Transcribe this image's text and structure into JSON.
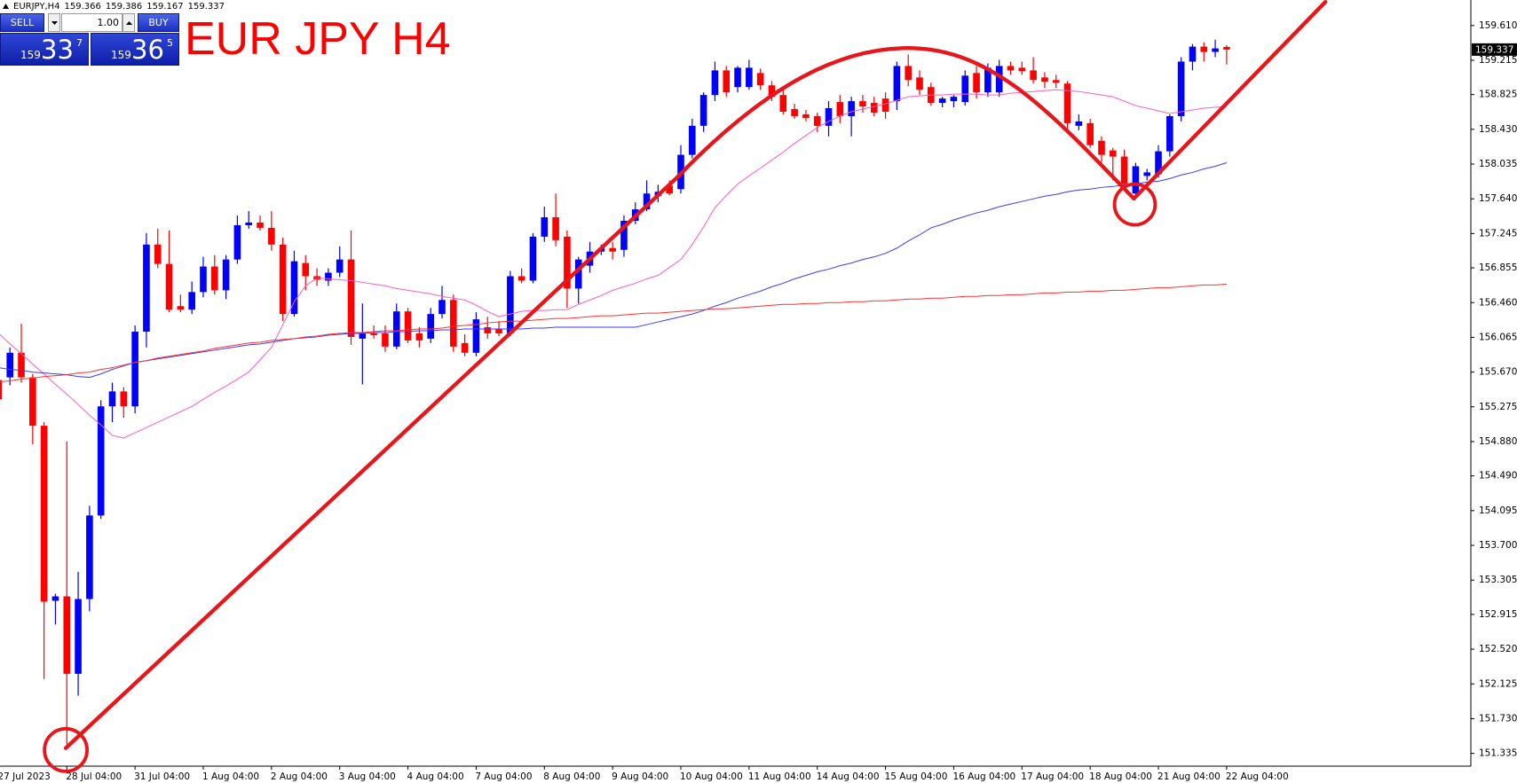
{
  "symbol": "EURJPY,H4",
  "trade_panel": {
    "sell": "SELL",
    "lot": "1.00",
    "buy": "BUY",
    "bid": {
      "big": "159",
      "pips": "33",
      "point": "7"
    },
    "ask": {
      "big": "159",
      "pips": "36",
      "point": "5"
    }
  },
  "chart_data": {
    "type": "candlestick",
    "title": "EUR JPY H4",
    "categories": [
      "27 Jul 2023",
      null,
      null,
      null,
      null,
      null,
      "28 Jul 04:00",
      null,
      null,
      null,
      null,
      null,
      "31 Jul 04:00",
      null,
      null,
      null,
      null,
      null,
      "1 Aug 04:00",
      null,
      null,
      null,
      null,
      null,
      "2 Aug 04:00",
      null,
      null,
      null,
      null,
      null,
      "3 Aug 04:00",
      null,
      null,
      null,
      null,
      null,
      "4 Aug 04:00",
      null,
      null,
      null,
      null,
      null,
      "7 Aug 04:00",
      null,
      null,
      null,
      null,
      null,
      "8 Aug 04:00",
      null,
      null,
      null,
      null,
      null,
      "9 Aug 04:00",
      null,
      null,
      null,
      null,
      null,
      "10 Aug 04:00",
      null,
      null,
      null,
      null,
      null,
      "11 Aug 04:00",
      null,
      null,
      null,
      null,
      null,
      "14 Aug 04:00",
      null,
      null,
      null,
      null,
      null,
      "15 Aug 04:00",
      null,
      null,
      null,
      null,
      null,
      "16 Aug 04:00",
      null,
      null,
      null,
      null,
      null,
      "17 Aug 04:00",
      null,
      null,
      null,
      null,
      null,
      "18 Aug 04:00",
      null,
      null,
      null,
      null,
      null,
      "21 Aug 04:00",
      null,
      null,
      null,
      null,
      null,
      "22 Aug 04:00"
    ],
    "open": [
      155.58,
      155.61,
      155.89,
      155.61,
      155.06,
      153.07,
      153.12,
      152.24,
      153.09,
      154.04,
      155.28,
      155.45,
      155.28,
      156.13,
      157.12,
      156.9,
      156.42,
      156.38,
      156.58,
      156.87,
      156.6,
      156.95,
      157.34,
      157.37,
      157.31,
      157.12,
      156.33,
      156.91,
      156.76,
      156.71,
      156.8,
      156.95,
      156.05,
      156.11,
      156.11,
      155.96,
      156.36,
      156.11,
      156.05,
      156.33,
      156.49,
      156.0,
      155.89,
      156.18,
      156.16,
      156.11,
      156.76,
      156.71,
      157.21,
      157.43,
      157.21,
      156.62,
      156.88,
      157.04,
      157.08,
      157.06,
      157.39,
      157.52,
      157.67,
      157.79,
      157.75,
      158.14,
      158.47,
      158.82,
      159.1,
      158.91,
      158.91,
      159.07,
      158.93,
      158.82,
      158.66,
      158.6,
      158.58,
      158.47,
      158.74,
      158.58,
      158.75,
      158.73,
      158.78,
      158.75,
      159.15,
      159.02,
      158.91,
      158.73,
      158.75,
      158.74,
      159.07,
      158.85,
      158.85,
      159.15,
      159.13,
      159.1,
      159.02,
      158.99,
      158.95,
      158.47,
      158.5,
      158.3,
      158.19,
      158.12,
      157.7,
      157.9,
      157.92,
      158.18,
      158.58,
      159.2,
      159.37,
      159.31,
      159.366
    ],
    "high": [
      155.64,
      155.95,
      156.22,
      155.65,
      155.1,
      153.15,
      154.88,
      153.4,
      154.15,
      155.35,
      155.55,
      155.5,
      156.2,
      157.25,
      157.3,
      157.28,
      156.55,
      156.7,
      156.98,
      157.0,
      157.0,
      157.45,
      157.5,
      157.45,
      157.5,
      157.2,
      157.05,
      157.0,
      156.85,
      156.85,
      157.1,
      157.28,
      156.45,
      156.2,
      156.2,
      156.45,
      156.4,
      156.18,
      156.4,
      156.65,
      156.55,
      156.1,
      156.35,
      156.3,
      156.25,
      156.82,
      156.85,
      157.25,
      157.55,
      157.7,
      157.28,
      156.98,
      157.15,
      157.12,
      157.15,
      157.45,
      157.6,
      157.85,
      157.8,
      157.85,
      158.25,
      158.55,
      158.85,
      159.2,
      159.15,
      159.15,
      159.22,
      159.12,
      158.98,
      158.88,
      158.72,
      158.65,
      158.62,
      158.75,
      158.82,
      158.8,
      158.82,
      158.8,
      158.85,
      159.2,
      159.28,
      159.1,
      158.96,
      158.8,
      158.82,
      159.1,
      159.15,
      159.18,
      159.22,
      159.2,
      159.2,
      159.25,
      159.08,
      159.05,
      158.98,
      158.6,
      158.55,
      158.35,
      158.22,
      158.2,
      158.05,
      157.98,
      158.25,
      158.6,
      159.25,
      159.4,
      159.42,
      159.45,
      159.386
    ],
    "low": [
      155.3,
      155.52,
      155.55,
      154.85,
      152.18,
      152.8,
      151.44,
      151.99,
      152.95,
      154.0,
      155.1,
      155.15,
      155.2,
      155.95,
      156.85,
      156.35,
      156.35,
      156.33,
      156.52,
      156.55,
      156.5,
      156.9,
      157.3,
      157.28,
      157.05,
      156.25,
      156.3,
      156.6,
      156.65,
      156.65,
      156.75,
      155.98,
      155.53,
      156.05,
      155.9,
      155.93,
      156.0,
      155.95,
      156.0,
      156.28,
      155.9,
      155.85,
      155.85,
      156.05,
      156.08,
      156.08,
      156.68,
      156.68,
      157.15,
      157.1,
      156.4,
      156.45,
      156.8,
      157.0,
      156.95,
      156.98,
      157.35,
      157.5,
      157.6,
      157.68,
      157.7,
      158.1,
      158.4,
      158.75,
      158.8,
      158.85,
      158.88,
      158.88,
      158.75,
      158.6,
      158.55,
      158.52,
      158.4,
      158.35,
      158.5,
      158.35,
      158.62,
      158.58,
      158.55,
      158.65,
      158.92,
      158.82,
      158.7,
      158.68,
      158.68,
      158.7,
      158.78,
      158.8,
      158.8,
      159.05,
      159.05,
      158.95,
      158.9,
      158.9,
      158.4,
      158.42,
      158.22,
      158.05,
      157.85,
      157.75,
      157.65,
      157.85,
      157.88,
      158.12,
      158.52,
      159.1,
      159.2,
      159.25,
      159.167
    ],
    "close": [
      155.36,
      155.89,
      155.61,
      155.06,
      153.06,
      153.12,
      152.24,
      153.09,
      154.04,
      155.28,
      155.45,
      155.28,
      156.13,
      157.12,
      156.9,
      156.38,
      156.38,
      156.58,
      156.87,
      156.6,
      156.95,
      157.34,
      157.37,
      157.31,
      157.12,
      156.33,
      156.93,
      156.76,
      156.72,
      156.8,
      156.95,
      156.07,
      156.11,
      156.09,
      155.96,
      156.36,
      156.03,
      156.03,
      156.33,
      156.49,
      155.96,
      155.89,
      156.27,
      156.11,
      156.11,
      156.76,
      156.71,
      157.21,
      157.43,
      157.17,
      156.62,
      156.95,
      157.04,
      157.08,
      157.04,
      157.39,
      157.52,
      157.7,
      157.72,
      157.7,
      158.14,
      158.47,
      158.82,
      159.1,
      158.85,
      159.13,
      159.13,
      158.93,
      158.8,
      158.63,
      158.58,
      158.56,
      158.47,
      158.67,
      158.58,
      158.75,
      158.69,
      158.62,
      158.63,
      159.15,
      158.99,
      158.88,
      158.73,
      158.78,
      158.8,
      159.04,
      158.85,
      159.13,
      159.15,
      159.1,
      159.09,
      158.99,
      158.97,
      158.96,
      158.5,
      158.52,
      158.25,
      158.14,
      158.12,
      157.81,
      158.01,
      157.94,
      158.18,
      158.58,
      159.2,
      159.37,
      159.31,
      159.35,
      159.337
    ],
    "up_color": "#0000ff",
    "down_color": "#ff0000",
    "series": [
      {
        "type": "line",
        "color": "#ff5cc0",
        "values": [
          156.11,
          155.99,
          155.88,
          155.76,
          155.65,
          155.53,
          155.42,
          155.3,
          155.18,
          155.07,
          154.95,
          154.92,
          154.98,
          155.04,
          155.1,
          155.16,
          155.22,
          155.28,
          155.36,
          155.44,
          155.51,
          155.59,
          155.67,
          155.81,
          155.95,
          156.21,
          156.47,
          156.65,
          156.74,
          156.73,
          156.72,
          156.71,
          156.69,
          156.67,
          156.65,
          156.62,
          156.6,
          156.58,
          156.56,
          156.53,
          156.51,
          156.49,
          156.43,
          156.36,
          156.3,
          156.33,
          156.36,
          156.37,
          156.37,
          156.38,
          156.38,
          156.44,
          156.49,
          156.54,
          156.6,
          156.64,
          156.68,
          156.73,
          156.77,
          156.86,
          156.95,
          157.12,
          157.32,
          157.54,
          157.68,
          157.81,
          157.9,
          157.99,
          158.08,
          158.17,
          158.27,
          158.36,
          158.45,
          158.52,
          158.58,
          158.63,
          158.66,
          158.69,
          158.72,
          158.76,
          158.8,
          158.81,
          158.82,
          158.82,
          158.83,
          158.83,
          158.83,
          158.82,
          158.82,
          158.84,
          158.85,
          158.86,
          158.87,
          158.88,
          158.87,
          158.86,
          158.84,
          158.82,
          158.8,
          158.75,
          158.7,
          158.67,
          158.64,
          158.61,
          158.63,
          158.65,
          158.67,
          158.68,
          158.69
        ]
      },
      {
        "type": "line",
        "color": "#3a3aff",
        "values": [
          155.72,
          155.7,
          155.69,
          155.67,
          155.66,
          155.65,
          155.64,
          155.62,
          155.61,
          155.65,
          155.7,
          155.74,
          155.78,
          155.8,
          155.82,
          155.84,
          155.86,
          155.88,
          155.9,
          155.92,
          155.94,
          155.96,
          155.98,
          155.99,
          156.01,
          156.03,
          156.05,
          156.06,
          156.07,
          156.09,
          156.1,
          156.11,
          156.11,
          156.12,
          156.12,
          156.13,
          156.13,
          156.14,
          156.14,
          156.15,
          156.15,
          156.16,
          156.16,
          156.16,
          156.16,
          156.16,
          156.16,
          156.17,
          156.17,
          156.18,
          156.18,
          156.18,
          156.18,
          156.18,
          156.18,
          156.18,
          156.18,
          156.21,
          156.24,
          156.27,
          156.3,
          156.33,
          156.37,
          156.42,
          156.46,
          156.51,
          156.55,
          156.59,
          156.64,
          156.68,
          156.73,
          156.77,
          156.81,
          156.84,
          156.88,
          156.91,
          156.95,
          156.98,
          157.02,
          157.08,
          157.16,
          157.23,
          157.31,
          157.35,
          157.4,
          157.44,
          157.48,
          157.51,
          157.55,
          157.58,
          157.61,
          157.64,
          157.67,
          157.69,
          157.72,
          157.74,
          157.75,
          157.77,
          157.78,
          157.8,
          157.81,
          157.83,
          157.84,
          157.87,
          157.91,
          157.94,
          157.98,
          158.01,
          158.05
        ]
      },
      {
        "type": "line",
        "color": "#ff3030",
        "values": [
          155.56,
          155.57,
          155.59,
          155.6,
          155.62,
          155.63,
          155.64,
          155.66,
          155.67,
          155.7,
          155.72,
          155.75,
          155.78,
          155.8,
          155.83,
          155.85,
          155.87,
          155.89,
          155.91,
          155.94,
          155.96,
          155.98,
          156.0,
          156.01,
          156.03,
          156.04,
          156.05,
          156.07,
          156.08,
          156.1,
          156.11,
          156.12,
          156.12,
          156.13,
          156.14,
          156.14,
          156.15,
          156.16,
          156.16,
          156.17,
          156.19,
          156.2,
          156.21,
          156.23,
          156.24,
          156.25,
          156.25,
          156.26,
          156.27,
          156.28,
          156.28,
          156.29,
          156.3,
          156.31,
          156.31,
          156.32,
          156.33,
          156.34,
          156.34,
          156.35,
          156.36,
          156.37,
          156.38,
          156.39,
          156.39,
          156.4,
          156.41,
          156.42,
          156.43,
          156.44,
          156.44,
          156.45,
          156.45,
          156.46,
          156.46,
          156.47,
          156.47,
          156.48,
          156.48,
          156.49,
          156.5,
          156.5,
          156.51,
          156.51,
          156.52,
          156.53,
          156.53,
          156.54,
          156.54,
          156.55,
          156.55,
          156.56,
          156.57,
          156.57,
          156.58,
          156.58,
          156.59,
          156.59,
          156.6,
          156.6,
          156.61,
          156.62,
          156.63,
          156.63,
          156.64,
          156.65,
          156.66,
          156.66,
          156.67
        ]
      }
    ],
    "ylim": [
      151.19,
      159.87
    ],
    "yticks": [
      {
        "value": 159.61,
        "label": "159.610"
      },
      159.215,
      158.825,
      {
        "value": 158.43,
        "label": "158.430"
      },
      158.035,
      {
        "value": 157.64,
        "label": "157.640"
      },
      157.245,
      156.855,
      {
        "value": 156.46,
        "label": "156.460"
      },
      156.065,
      {
        "value": 155.67,
        "label": "155.670"
      },
      155.275,
      {
        "value": 154.88,
        "label": "154.880"
      },
      {
        "value": 154.49,
        "label": "154.490"
      },
      154.095,
      {
        "value": 153.7,
        "label": "153.700"
      },
      153.305,
      152.915,
      {
        "value": 152.52,
        "label": "152.520"
      },
      152.125,
      {
        "value": 151.73,
        "label": "151.730"
      },
      151.335
    ],
    "grid": false
  }
}
